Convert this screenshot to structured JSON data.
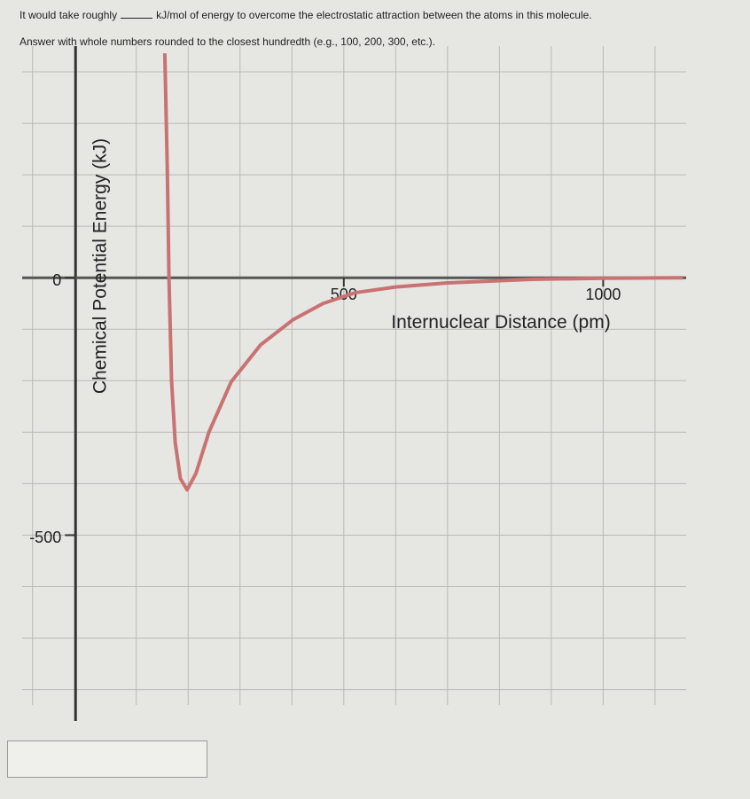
{
  "question": {
    "before_blank": "It would take roughly",
    "after_blank": "kJ/mol of energy to overcome the electrostatic attraction between the atoms in this molecule.",
    "instruction": "Answer with whole numbers rounded to the closest hundredth (e.g., 100, 200, 300, etc.)."
  },
  "chart_data": {
    "type": "line",
    "x_label": "Internuclear Distance (pm)",
    "y_label": "Chemical Potential Energy (kJ)",
    "x": [
      155,
      160,
      163,
      168,
      175,
      185,
      198,
      215,
      240,
      283,
      340,
      403,
      460,
      522,
      600,
      700,
      863,
      1000,
      1154
    ],
    "series": [
      {
        "color": "#c97272",
        "values": [
          436,
          200,
          0,
          -200,
          -320,
          -390,
          -412,
          -380,
          -300,
          -202,
          -130,
          -81,
          -50,
          -29,
          -18,
          -10,
          -3,
          -1,
          0
        ]
      }
    ],
    "xlim": [
      -120,
      1160
    ],
    "ylim": [
      -830,
      450
    ],
    "xticks": [
      500,
      1000
    ],
    "yticks": [
      0,
      -500
    ],
    "xgrid": [
      -100,
      100,
      200,
      300,
      400,
      500,
      600,
      700,
      800,
      900,
      1000,
      1100
    ],
    "ygrid": [
      -800,
      -700,
      -600,
      -500,
      -400,
      -300,
      -200,
      -100,
      100,
      200,
      300,
      400
    ],
    "grid": true
  }
}
